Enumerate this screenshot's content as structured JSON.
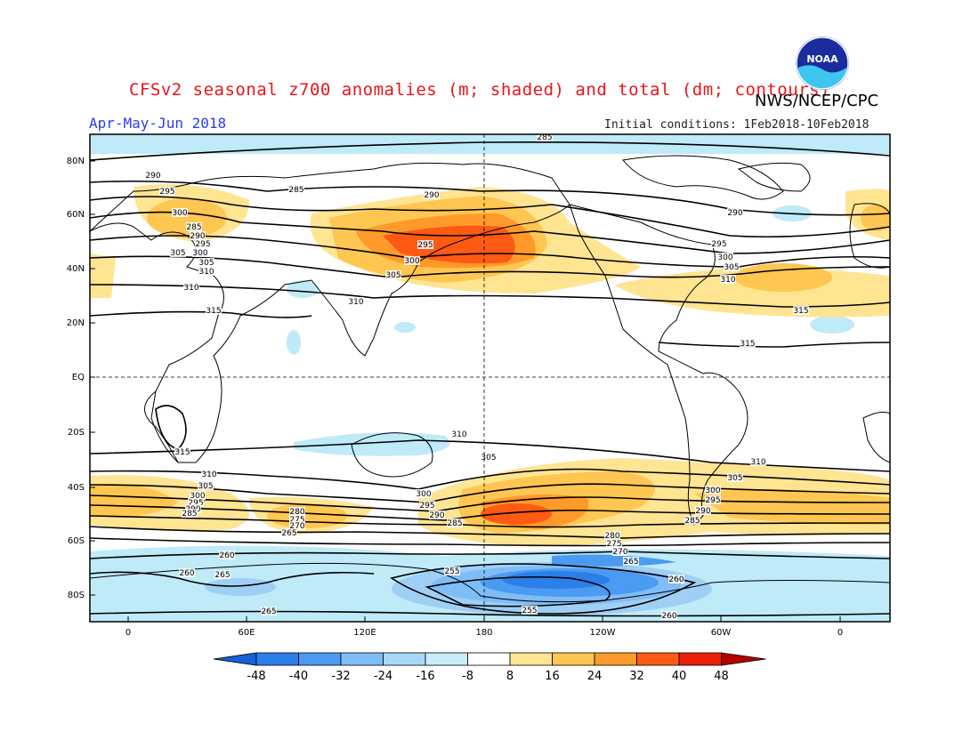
{
  "header": {
    "title": "CFSv2 seasonal z700 anomalies (m; shaded) and total (dm; contours)",
    "org": "NWS/NCEP/CPC",
    "period": "Apr-May-Jun 2018",
    "initial_conditions": "Initial conditions: 1Feb2018-10Feb2018",
    "logo_text": "NOAA"
  },
  "map": {
    "lat_labels": [
      "80N",
      "60N",
      "40N",
      "20N",
      "EQ",
      "20S",
      "40S",
      "60S",
      "80S"
    ],
    "lon_labels": [
      "0",
      "60E",
      "120E",
      "180",
      "120W",
      "60W",
      "0"
    ]
  },
  "colorbar": {
    "ticks": [
      "-48",
      "-40",
      "-32",
      "-24",
      "-16",
      "-8",
      "8",
      "16",
      "24",
      "32",
      "40",
      "48"
    ],
    "colors": [
      "#1560d8",
      "#2a7fe8",
      "#4b9bf2",
      "#7fbdf7",
      "#a8d8f8",
      "#c8eefa",
      "#ffffff",
      "#ffe492",
      "#ffc652",
      "#ff9a2a",
      "#ff5a14",
      "#e8220a",
      "#b00000"
    ]
  },
  "contour_labels": [
    {
      "text": "285"
    },
    {
      "text": "290"
    },
    {
      "text": "295"
    },
    {
      "text": "300"
    },
    {
      "text": "305"
    },
    {
      "text": "310"
    },
    {
      "text": "315"
    },
    {
      "text": "285"
    },
    {
      "text": "290"
    },
    {
      "text": "295"
    },
    {
      "text": "300"
    },
    {
      "text": "305"
    },
    {
      "text": "310"
    },
    {
      "text": "290"
    },
    {
      "text": "295"
    },
    {
      "text": "300"
    },
    {
      "text": "305"
    },
    {
      "text": "310"
    },
    {
      "text": "315"
    },
    {
      "text": "315"
    },
    {
      "text": "310"
    },
    {
      "text": "305"
    },
    {
      "text": "300"
    },
    {
      "text": "295"
    },
    {
      "text": "290"
    },
    {
      "text": "285"
    },
    {
      "text": "310"
    },
    {
      "text": "305"
    },
    {
      "text": "300"
    },
    {
      "text": "295"
    },
    {
      "text": "290"
    },
    {
      "text": "285"
    },
    {
      "text": "280"
    },
    {
      "text": "275"
    },
    {
      "text": "270"
    },
    {
      "text": "265"
    },
    {
      "text": "260"
    },
    {
      "text": "265"
    },
    {
      "text": "315"
    },
    {
      "text": "310"
    },
    {
      "text": "305"
    },
    {
      "text": "300"
    },
    {
      "text": "295"
    },
    {
      "text": "290"
    },
    {
      "text": "285"
    },
    {
      "text": "280"
    },
    {
      "text": "275"
    },
    {
      "text": "270"
    },
    {
      "text": "265"
    },
    {
      "text": "260"
    },
    {
      "text": "255"
    },
    {
      "text": "255"
    },
    {
      "text": "260"
    },
    {
      "text": "265"
    },
    {
      "text": "260"
    },
    {
      "text": "310"
    },
    {
      "text": "305"
    },
    {
      "text": "300"
    },
    {
      "text": "295"
    },
    {
      "text": "290"
    },
    {
      "text": "285"
    }
  ]
}
